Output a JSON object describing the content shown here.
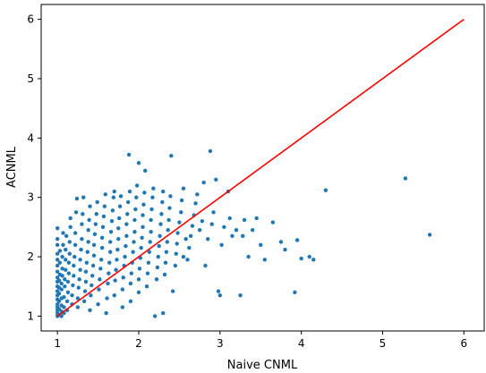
{
  "chart_data": {
    "type": "scatter",
    "xlabel": "Naive CNML",
    "ylabel": "ACNML",
    "xlim": [
      0.8,
      6.25
    ],
    "ylim": [
      0.75,
      6.25
    ],
    "grid": false,
    "legend": "none",
    "x_ticks": [
      1,
      2,
      3,
      4,
      5,
      6
    ],
    "y_ticks": [
      1,
      2,
      3,
      4,
      5,
      6
    ],
    "x_tick_labels": [
      "1",
      "2",
      "3",
      "4",
      "5",
      "6"
    ],
    "y_tick_labels": [
      "1",
      "2",
      "3",
      "4",
      "5",
      "6"
    ],
    "series": [
      {
        "type": "scatter",
        "color": "#1f77b4",
        "points": [
          [
            1.0,
            1.0
          ],
          [
            1.0,
            1.05
          ],
          [
            1.0,
            1.1
          ],
          [
            1.0,
            1.15
          ],
          [
            1.0,
            1.2
          ],
          [
            1.0,
            1.28
          ],
          [
            1.0,
            1.35
          ],
          [
            1.0,
            1.42
          ],
          [
            1.0,
            1.5
          ],
          [
            1.0,
            1.58
          ],
          [
            1.0,
            1.65
          ],
          [
            1.0,
            1.75
          ],
          [
            1.0,
            1.85
          ],
          [
            1.0,
            1.95
          ],
          [
            1.0,
            2.05
          ],
          [
            1.0,
            2.2
          ],
          [
            1.0,
            2.3
          ],
          [
            1.0,
            2.48
          ],
          [
            1.02,
            1.02
          ],
          [
            1.02,
            1.12
          ],
          [
            1.02,
            1.25
          ],
          [
            1.02,
            1.38
          ],
          [
            1.02,
            1.48
          ],
          [
            1.02,
            1.6
          ],
          [
            1.03,
            1.7
          ],
          [
            1.03,
            1.9
          ],
          [
            1.03,
            2.1
          ],
          [
            1.05,
            1.0
          ],
          [
            1.05,
            1.08
          ],
          [
            1.05,
            1.18
          ],
          [
            1.05,
            1.3
          ],
          [
            1.05,
            1.45
          ],
          [
            1.05,
            1.55
          ],
          [
            1.06,
            1.68
          ],
          [
            1.06,
            1.8
          ],
          [
            1.06,
            2.0
          ],
          [
            1.07,
            2.2
          ],
          [
            1.07,
            2.4
          ],
          [
            1.08,
            1.05
          ],
          [
            1.08,
            1.15
          ],
          [
            1.08,
            1.32
          ],
          [
            1.09,
            1.5
          ],
          [
            1.09,
            1.62
          ],
          [
            1.1,
            1.78
          ],
          [
            1.1,
            1.95
          ],
          [
            1.1,
            2.12
          ],
          [
            1.11,
            2.35
          ],
          [
            1.12,
            1.1
          ],
          [
            1.12,
            1.25
          ],
          [
            1.13,
            1.4
          ],
          [
            1.13,
            1.58
          ],
          [
            1.14,
            1.72
          ],
          [
            1.14,
            1.9
          ],
          [
            1.15,
            2.05
          ],
          [
            1.15,
            2.25
          ],
          [
            1.16,
            2.5
          ],
          [
            1.16,
            2.65
          ],
          [
            1.18,
            1.2
          ],
          [
            1.18,
            1.35
          ],
          [
            1.19,
            1.52
          ],
          [
            1.2,
            1.68
          ],
          [
            1.2,
            1.85
          ],
          [
            1.21,
            2.0
          ],
          [
            1.22,
            2.2
          ],
          [
            1.22,
            2.4
          ],
          [
            1.23,
            2.75
          ],
          [
            1.24,
            2.98
          ],
          [
            1.25,
            1.15
          ],
          [
            1.25,
            1.3
          ],
          [
            1.26,
            1.48
          ],
          [
            1.27,
            1.62
          ],
          [
            1.28,
            1.78
          ],
          [
            1.28,
            1.95
          ],
          [
            1.29,
            2.12
          ],
          [
            1.3,
            2.3
          ],
          [
            1.3,
            2.55
          ],
          [
            1.31,
            2.72
          ],
          [
            1.32,
            3.0
          ],
          [
            1.33,
            1.25
          ],
          [
            1.34,
            1.42
          ],
          [
            1.35,
            1.58
          ],
          [
            1.35,
            1.75
          ],
          [
            1.36,
            1.9
          ],
          [
            1.37,
            2.08
          ],
          [
            1.38,
            2.25
          ],
          [
            1.38,
            2.45
          ],
          [
            1.39,
            2.62
          ],
          [
            1.4,
            2.85
          ],
          [
            1.4,
            1.1
          ],
          [
            1.41,
            1.35
          ],
          [
            1.42,
            1.52
          ],
          [
            1.43,
            1.68
          ],
          [
            1.44,
            1.85
          ],
          [
            1.45,
            2.02
          ],
          [
            1.45,
            2.2
          ],
          [
            1.46,
            2.38
          ],
          [
            1.47,
            2.55
          ],
          [
            1.48,
            2.72
          ],
          [
            1.49,
            2.92
          ],
          [
            1.5,
            1.2
          ],
          [
            1.51,
            1.45
          ],
          [
            1.52,
            1.62
          ],
          [
            1.53,
            1.8
          ],
          [
            1.54,
            1.95
          ],
          [
            1.55,
            2.15
          ],
          [
            1.55,
            2.32
          ],
          [
            1.56,
            2.5
          ],
          [
            1.57,
            2.68
          ],
          [
            1.58,
            2.85
          ],
          [
            1.59,
            3.05
          ],
          [
            1.6,
            1.05
          ],
          [
            1.61,
            1.3
          ],
          [
            1.62,
            1.55
          ],
          [
            1.63,
            1.72
          ],
          [
            1.64,
            1.9
          ],
          [
            1.65,
            2.08
          ],
          [
            1.65,
            2.25
          ],
          [
            1.66,
            2.42
          ],
          [
            1.67,
            2.6
          ],
          [
            1.68,
            2.78
          ],
          [
            1.69,
            3.0
          ],
          [
            1.7,
            3.1
          ],
          [
            1.7,
            1.35
          ],
          [
            1.71,
            1.6
          ],
          [
            1.72,
            1.78
          ],
          [
            1.73,
            1.95
          ],
          [
            1.74,
            2.12
          ],
          [
            1.75,
            2.3
          ],
          [
            1.75,
            2.48
          ],
          [
            1.76,
            2.65
          ],
          [
            1.77,
            2.85
          ],
          [
            1.78,
            3.02
          ],
          [
            1.8,
            1.15
          ],
          [
            1.8,
            1.45
          ],
          [
            1.81,
            1.65
          ],
          [
            1.82,
            1.85
          ],
          [
            1.83,
            2.0
          ],
          [
            1.84,
            2.18
          ],
          [
            1.85,
            2.35
          ],
          [
            1.85,
            2.55
          ],
          [
            1.86,
            2.72
          ],
          [
            1.87,
            2.92
          ],
          [
            1.88,
            3.72
          ],
          [
            1.89,
            3.1
          ],
          [
            1.9,
            1.25
          ],
          [
            1.9,
            1.55
          ],
          [
            1.91,
            1.72
          ],
          [
            1.92,
            1.9
          ],
          [
            1.93,
            2.08
          ],
          [
            1.94,
            2.25
          ],
          [
            1.95,
            2.42
          ],
          [
            1.95,
            2.62
          ],
          [
            1.96,
            2.8
          ],
          [
            1.97,
            3.0
          ],
          [
            1.98,
            3.2
          ],
          [
            2.0,
            1.4
          ],
          [
            2.0,
            1.62
          ],
          [
            2.01,
            1.8
          ],
          [
            2.02,
            1.98
          ],
          [
            2.03,
            2.15
          ],
          [
            2.04,
            2.32
          ],
          [
            2.05,
            2.5
          ],
          [
            2.05,
            2.7
          ],
          [
            2.06,
            2.88
          ],
          [
            2.07,
            3.08
          ],
          [
            2.08,
            3.45
          ],
          [
            2.0,
            3.58
          ],
          [
            2.1,
            1.5
          ],
          [
            2.11,
            1.72
          ],
          [
            2.12,
            1.9
          ],
          [
            2.13,
            2.08
          ],
          [
            2.14,
            2.25
          ],
          [
            2.15,
            2.42
          ],
          [
            2.15,
            2.62
          ],
          [
            2.16,
            2.8
          ],
          [
            2.17,
            3.0
          ],
          [
            2.18,
            3.15
          ],
          [
            2.2,
            1.0
          ],
          [
            2.22,
            1.62
          ],
          [
            2.23,
            1.82
          ],
          [
            2.24,
            2.0
          ],
          [
            2.25,
            2.18
          ],
          [
            2.26,
            2.35
          ],
          [
            2.27,
            2.55
          ],
          [
            2.28,
            2.72
          ],
          [
            2.29,
            2.92
          ],
          [
            2.3,
            3.1
          ],
          [
            2.3,
            1.05
          ],
          [
            2.32,
            1.7
          ],
          [
            2.33,
            1.9
          ],
          [
            2.34,
            2.08
          ],
          [
            2.35,
            2.25
          ],
          [
            2.36,
            2.45
          ],
          [
            2.37,
            2.62
          ],
          [
            2.38,
            2.82
          ],
          [
            2.39,
            3.02
          ],
          [
            2.4,
            3.7
          ],
          [
            2.42,
            1.42
          ],
          [
            2.45,
            1.85
          ],
          [
            2.46,
            2.05
          ],
          [
            2.47,
            2.22
          ],
          [
            2.48,
            2.4
          ],
          [
            2.5,
            2.58
          ],
          [
            2.52,
            2.75
          ],
          [
            2.53,
            2.95
          ],
          [
            2.55,
            3.15
          ],
          [
            2.55,
            2.0
          ],
          [
            2.58,
            2.3
          ],
          [
            2.6,
            1.95
          ],
          [
            2.62,
            2.15
          ],
          [
            2.64,
            2.35
          ],
          [
            2.66,
            2.52
          ],
          [
            2.68,
            2.7
          ],
          [
            2.7,
            2.9
          ],
          [
            2.72,
            3.05
          ],
          [
            2.75,
            2.45
          ],
          [
            2.78,
            2.6
          ],
          [
            2.8,
            3.25
          ],
          [
            2.82,
            1.85
          ],
          [
            2.85,
            2.3
          ],
          [
            2.88,
            3.78
          ],
          [
            2.9,
            2.55
          ],
          [
            2.92,
            2.75
          ],
          [
            2.95,
            3.3
          ],
          [
            2.98,
            1.42
          ],
          [
            3.0,
            1.35
          ],
          [
            3.02,
            2.2
          ],
          [
            3.05,
            2.5
          ],
          [
            3.1,
            3.1
          ],
          [
            3.12,
            2.65
          ],
          [
            3.15,
            2.35
          ],
          [
            3.2,
            2.45
          ],
          [
            3.25,
            1.35
          ],
          [
            3.28,
            2.35
          ],
          [
            3.3,
            2.62
          ],
          [
            3.35,
            2.0
          ],
          [
            3.4,
            2.45
          ],
          [
            3.45,
            2.65
          ],
          [
            3.5,
            2.2
          ],
          [
            3.55,
            1.95
          ],
          [
            3.65,
            2.58
          ],
          [
            3.75,
            2.25
          ],
          [
            3.8,
            2.12
          ],
          [
            3.92,
            1.4
          ],
          [
            3.95,
            2.28
          ],
          [
            4.0,
            1.97
          ],
          [
            4.1,
            2.0
          ],
          [
            4.15,
            1.95
          ],
          [
            4.3,
            3.12
          ],
          [
            5.28,
            3.32
          ],
          [
            5.58,
            2.37
          ]
        ]
      },
      {
        "type": "line",
        "color": "#ff0000",
        "points": [
          [
            1,
            1
          ],
          [
            6,
            6
          ]
        ]
      }
    ]
  }
}
